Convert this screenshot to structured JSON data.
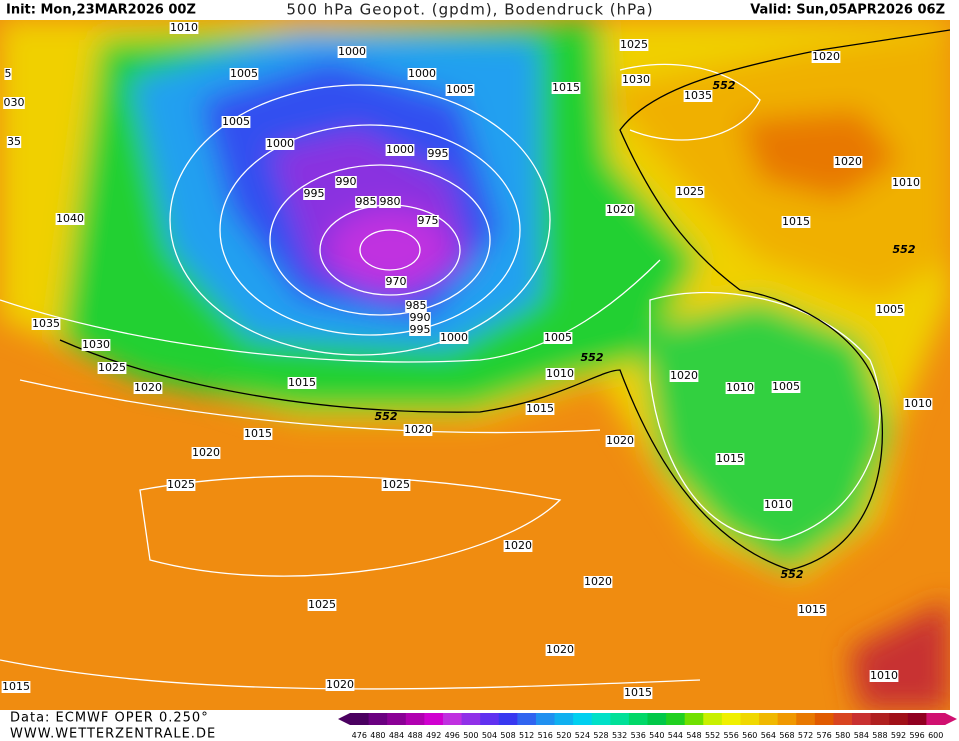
{
  "header": {
    "init": "Init: Mon,23MAR2026 00Z",
    "title": "500 hPa Geopot. (gpdm), Bodendruck (hPa)",
    "valid": "Valid: Sun,05APR2026 06Z"
  },
  "footer": {
    "data": "Data: ECMWF OPER 0.250°",
    "site": "WWW.WETTERZENTRALE.DE"
  },
  "colorbar": {
    "levels": [
      476,
      480,
      484,
      488,
      492,
      496,
      500,
      504,
      508,
      512,
      516,
      520,
      524,
      528,
      532,
      536,
      540,
      544,
      548,
      552,
      556,
      560,
      564,
      568,
      572,
      576,
      580,
      584,
      588,
      592,
      596,
      600
    ],
    "colors": [
      "#4a0060",
      "#6a0080",
      "#8a0095",
      "#b000b0",
      "#d000d0",
      "#c030e0",
      "#9030e8",
      "#6030f0",
      "#3838f0",
      "#3064f0",
      "#2090f0",
      "#10b0f0",
      "#00d0f0",
      "#00e0c8",
      "#00e098",
      "#00d868",
      "#00c848",
      "#20d020",
      "#70e000",
      "#c8f000",
      "#f0f000",
      "#f0d800",
      "#f0b800",
      "#f09800",
      "#e87800",
      "#e05a00",
      "#d84420",
      "#c83030",
      "#b02020",
      "#a01018",
      "#900020",
      "#d01070"
    ]
  },
  "contour_labels": [
    "1010",
    "1000",
    "1005",
    "1000",
    "1005",
    "1025",
    "1030",
    "1035",
    "552",
    "1020",
    "1015",
    "1005",
    "1000",
    "1000",
    "995",
    "990",
    "995",
    "985",
    "980",
    "975",
    "970",
    "1020",
    "1010",
    "1025",
    "1020",
    "1015",
    "552",
    "1040",
    "1035",
    "1030",
    "1025",
    "1020",
    "1015",
    "985",
    "990",
    "995",
    "1000",
    "1005",
    "552",
    "1010",
    "1020",
    "1010",
    "1005",
    "1005",
    "1010",
    "1015",
    "552",
    "1020",
    "1015",
    "1020",
    "1020",
    "1015",
    "1025",
    "1025",
    "1010",
    "1020",
    "552",
    "1020",
    "1015",
    "1025",
    "1020",
    "1010",
    "1020",
    "1015",
    "1015",
    "5",
    "030",
    "35"
  ]
}
